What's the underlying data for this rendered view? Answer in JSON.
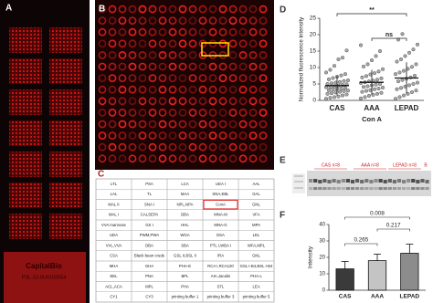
{
  "panel_labels": [
    "A",
    "B",
    "C",
    "D",
    "E",
    "F"
  ],
  "panel_a": {
    "slide_text": [
      "CapitalBio",
      "PSL-12-0U0150054"
    ]
  },
  "panel_c": {
    "rows": [
      [
        "LTL",
        "PSA",
        "LCA",
        "UEA I",
        "AAL"
      ],
      [
        "LAL",
        "TL",
        "MAA",
        "SNA,EBL",
        "GAL"
      ],
      [
        "MAL II",
        "SNA I",
        "NPL,NPA",
        "ConA",
        "GNL"
      ],
      [
        "MAL I",
        "CALSEPA",
        "DBA",
        "MNA-M",
        "VFA"
      ],
      [
        "VVA mannose",
        "GS I",
        "HHL",
        "MNA-G",
        "MPA"
      ],
      [
        "UDA",
        "PWM,PWA",
        "WGA",
        "DSA",
        "LEL"
      ],
      [
        "VVL,VVA",
        "DBA",
        "SBA",
        "PTL I,WBA I",
        "WFA,MPL"
      ],
      [
        "CSA",
        "Black bean crude",
        "GSL II,BSL II",
        "IRA",
        "GNL"
      ],
      [
        "MHA",
        "GHA",
        "PHA-E",
        "RCA I,RCA120",
        "GSL I-B4,BSL I-B4"
      ],
      [
        "EEL",
        "PNA",
        "BPL",
        "AIA,Jacalin",
        "PHA-L"
      ],
      [
        "ACL,ACA",
        "MPL",
        "PHA",
        "STL",
        "LEA"
      ],
      [
        "CY1",
        "CY3",
        "printing buffer 1",
        "printing buffer 3",
        "printing buffer 5"
      ]
    ]
  },
  "panel_e": {
    "groups": [
      "CAS n=8",
      "AAA n=8",
      "LEPAD n=8",
      "B"
    ]
  },
  "chart_data": [
    {
      "type": "strip",
      "y_label": "Normalized fluorescence intensity",
      "x_label": "Con A",
      "categories": [
        "CAS",
        "AAA",
        "LEPAD"
      ],
      "color": "#a9a9a9",
      "values": [
        [
          0.5,
          0.8,
          1,
          1.2,
          1.5,
          1.8,
          2,
          2.2,
          2.4,
          2.6,
          2.8,
          3,
          3.1,
          3.3,
          3.5,
          3.6,
          3.8,
          4,
          4.1,
          4.3,
          4.5,
          4.7,
          4.9,
          5,
          5.2,
          5.4,
          5.6,
          5.9,
          6.1,
          6.4,
          6.8,
          7.2,
          7.6,
          8,
          8.5,
          9.3,
          10.5,
          12.5,
          13,
          15.2
        ],
        [
          0.6,
          1,
          1.4,
          1.7,
          2,
          2.3,
          2.6,
          2.9,
          3.1,
          3.4,
          3.6,
          3.9,
          4.1,
          4.3,
          4.6,
          4.8,
          5,
          5.3,
          5.5,
          5.8,
          6,
          6.3,
          6.7,
          7,
          7.4,
          7.9,
          8.3,
          8.8,
          9.5,
          10.3,
          11,
          12.2,
          13.5,
          15,
          16.8
        ],
        [
          0.5,
          1,
          1.5,
          2,
          2.5,
          3,
          3.4,
          3.8,
          4.2,
          4.6,
          5,
          5.4,
          5.8,
          6.2,
          6.6,
          7,
          7.5,
          8,
          8.5,
          9,
          9.6,
          10.2,
          11,
          11.8,
          12.5,
          13.5,
          14.5,
          15.5,
          17,
          18.5,
          20.2
        ]
      ],
      "means": [
        4.5,
        5.5,
        6.8
      ],
      "sd": [
        3,
        3.8,
        4.8
      ],
      "comparisons": [
        "**",
        "ns"
      ],
      "ylim": [
        0,
        25
      ],
      "yticks": [
        0,
        5,
        10,
        15,
        20,
        25
      ]
    },
    {
      "type": "bar",
      "y_label": "Intensity",
      "categories": [
        "CAS",
        "AAA",
        "LEPAD"
      ],
      "colors": [
        "#3a3a3a",
        "#c4c4c4",
        "#8c8c8c"
      ],
      "values": [
        13,
        18,
        22.5
      ],
      "errors": [
        4.5,
        4,
        5.5
      ],
      "comparisons": [
        0.008,
        0.217,
        0.265
      ],
      "ylim": [
        0,
        40
      ],
      "yticks": [
        0,
        10,
        20,
        30,
        40
      ]
    }
  ]
}
